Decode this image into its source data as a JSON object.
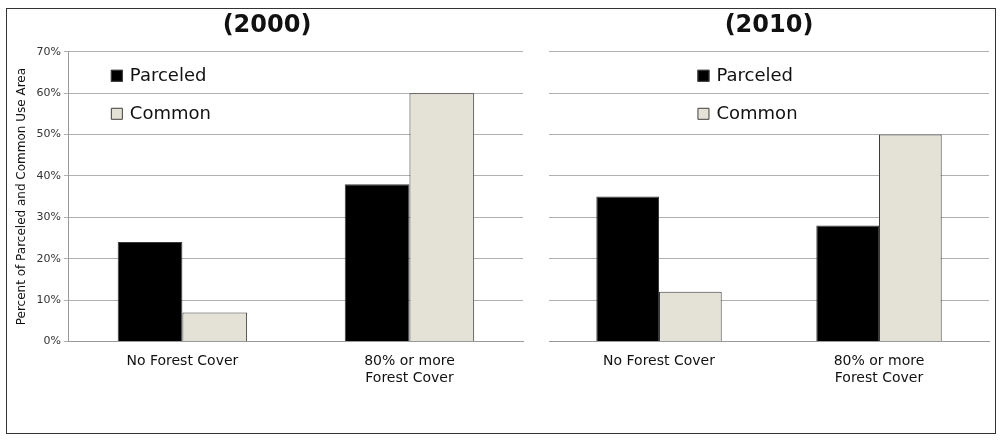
{
  "chart_data": [
    {
      "type": "bar",
      "title": "(2000)",
      "ylabel": "Percent of Parceled and Common Use Area",
      "categories": [
        "No Forest Cover",
        "80% or more\nForest Cover"
      ],
      "series": [
        {
          "name": "Parceled",
          "color": "#000000",
          "values": [
            24,
            38
          ]
        },
        {
          "name": "Common",
          "color": "#e4e2d6",
          "values": [
            7,
            60
          ]
        }
      ],
      "ylim": [
        0,
        70
      ],
      "yticks": [
        {
          "value": 0,
          "label": "0%"
        },
        {
          "value": 10,
          "label": "10%"
        },
        {
          "value": 20,
          "label": "20%"
        },
        {
          "value": 30,
          "label": "30%"
        },
        {
          "value": 40,
          "label": "40%"
        },
        {
          "value": 50,
          "label": "50%"
        },
        {
          "value": 60,
          "label": "60%"
        },
        {
          "value": 70,
          "label": "70%"
        }
      ],
      "grid": "y",
      "legend": "top left"
    },
    {
      "type": "bar",
      "title": "(2010)",
      "categories": [
        "No Forest Cover",
        "80% or more\nForest Cover"
      ],
      "series": [
        {
          "name": "Parceled",
          "color": "#000000",
          "values": [
            35,
            28
          ]
        },
        {
          "name": "Common",
          "color": "#e4e2d6",
          "values": [
            12,
            50
          ]
        }
      ],
      "ylim": [
        0,
        70
      ],
      "yticks": [
        {
          "value": 0,
          "label": null
        },
        {
          "value": 10,
          "label": null
        },
        {
          "value": 20,
          "label": null
        },
        {
          "value": 30,
          "label": null
        },
        {
          "value": 40,
          "label": null
        },
        {
          "value": 50,
          "label": null
        },
        {
          "value": 60,
          "label": null
        },
        {
          "value": 70,
          "label": null
        }
      ],
      "grid": "y",
      "legend": "top",
      "tick_labels": "x"
    }
  ]
}
